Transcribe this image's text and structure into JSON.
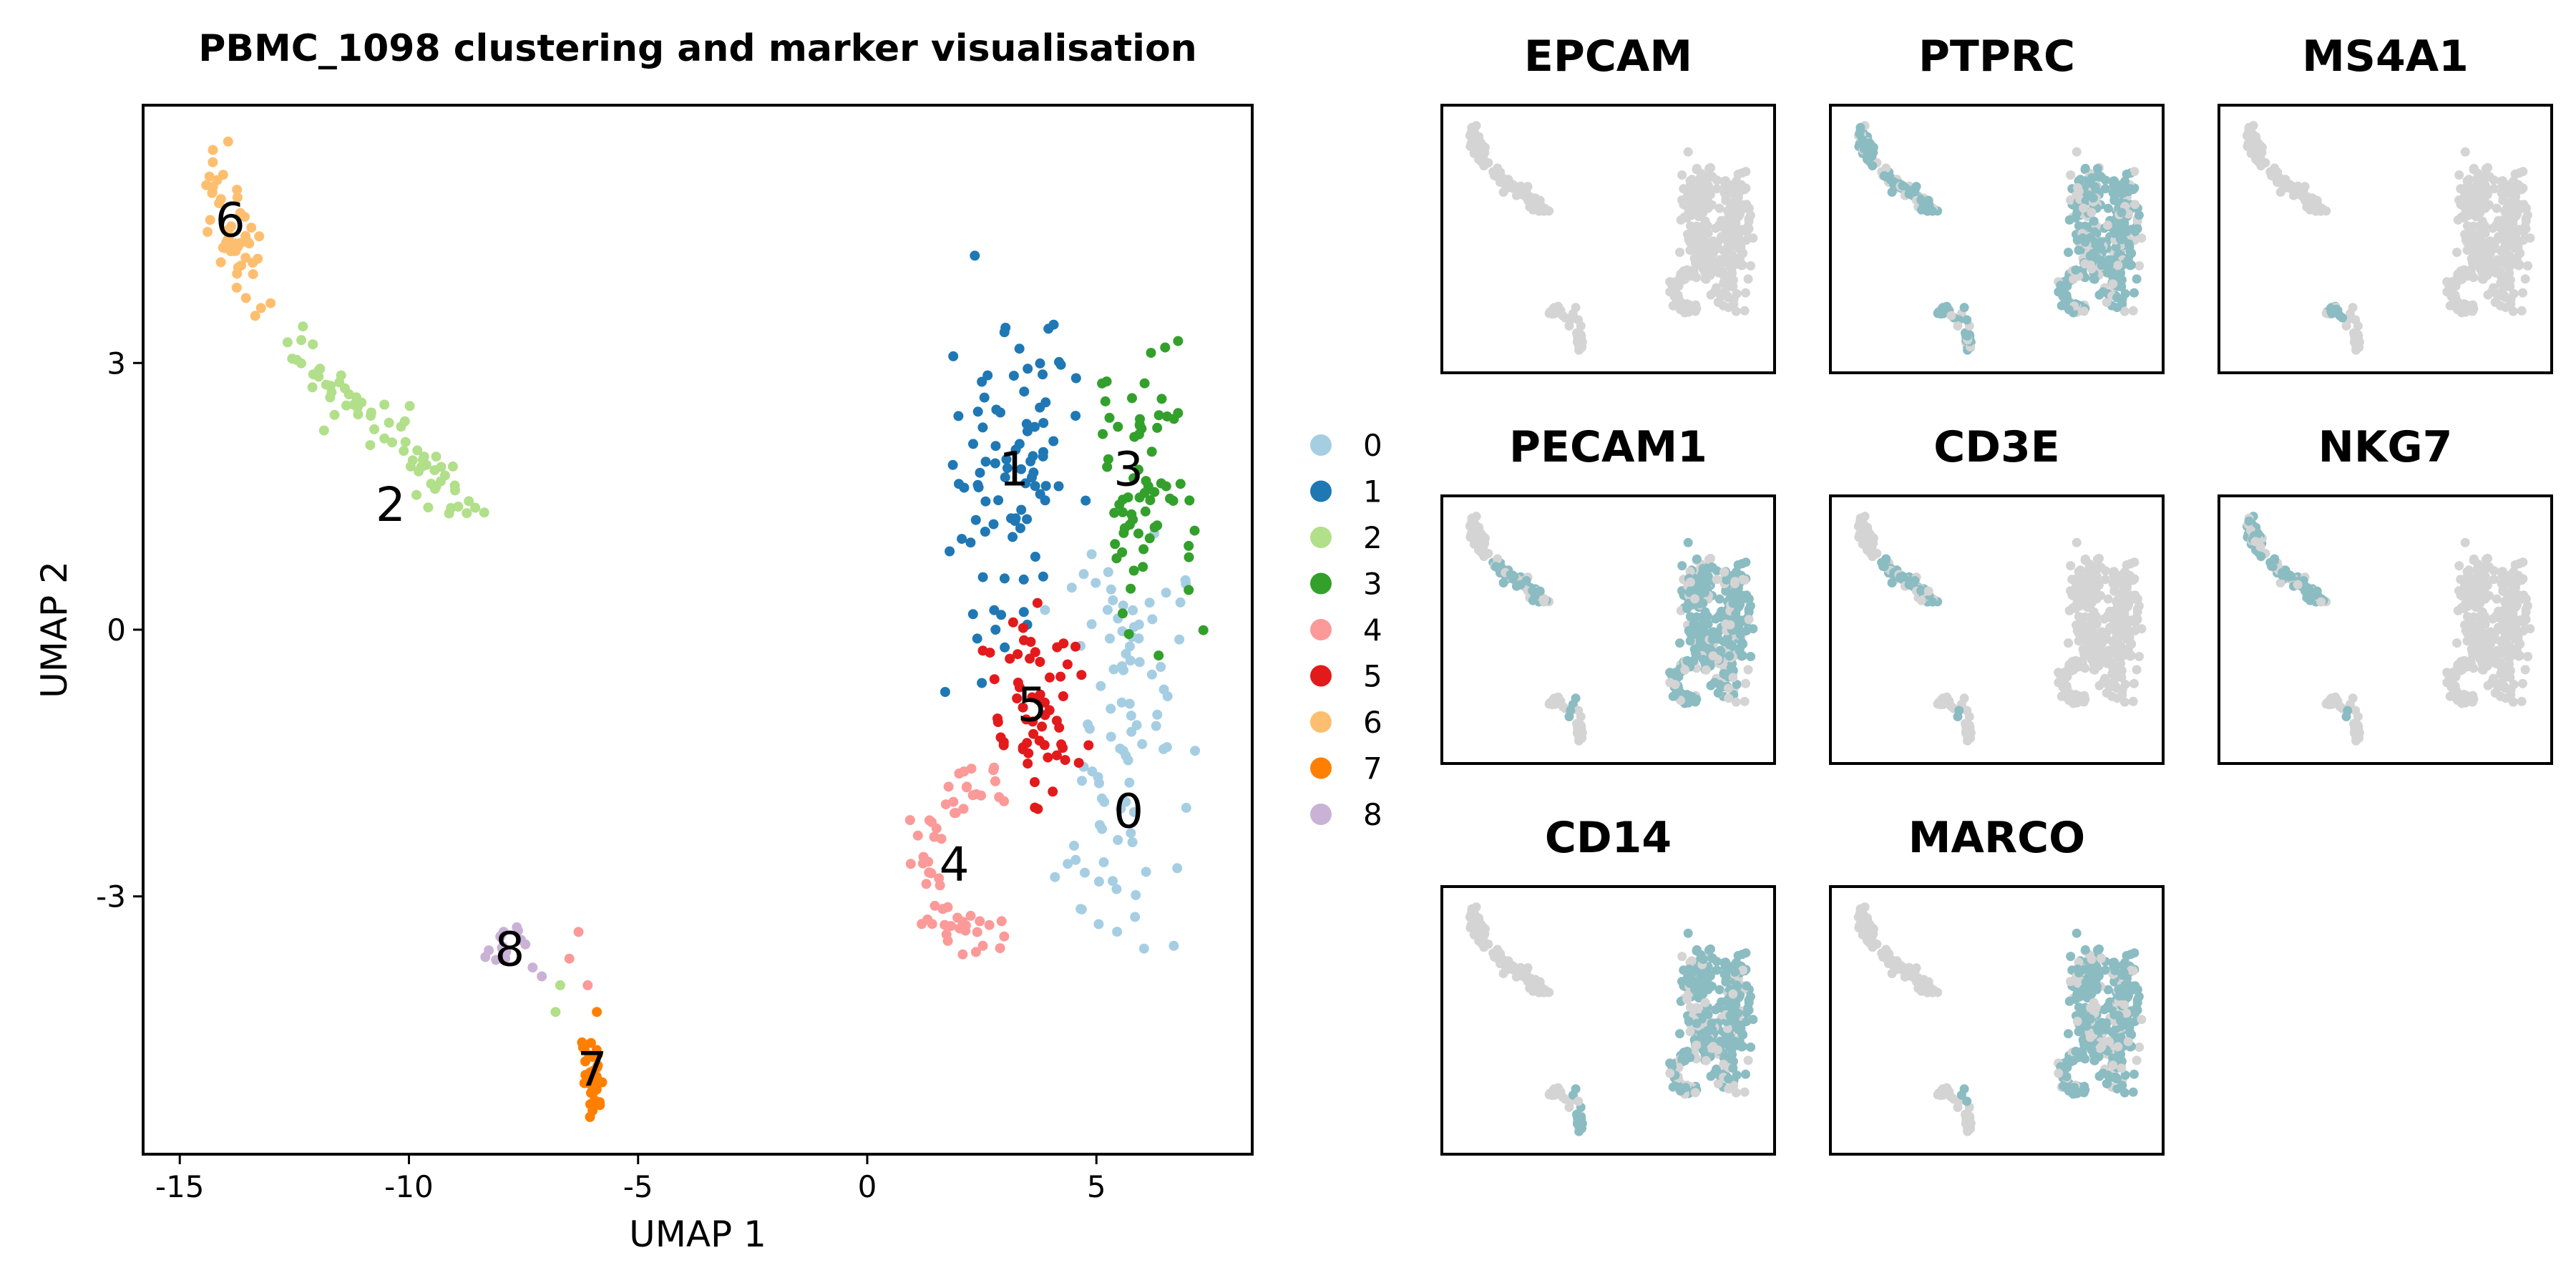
{
  "chart_data": [
    {
      "type": "scatter",
      "title": "PBMC_1098 clustering and marker visualisation",
      "xlabel": "UMAP 1",
      "ylabel": "UMAP 2",
      "xlim": [
        -15.8,
        8.4
      ],
      "ylim": [
        -5.9,
        5.9
      ],
      "x_ticks": [
        -15,
        -10,
        -5,
        0,
        5
      ],
      "x_tick_labels": [
        "-15",
        "-10",
        "-5",
        "0",
        "5"
      ],
      "y_ticks": [
        3,
        0,
        -3
      ],
      "y_tick_labels": [
        "3",
        "0",
        "-3"
      ],
      "grid": false,
      "legend_position": "right",
      "clusters": [
        {
          "name": "0",
          "color": "#a6cee3",
          "label": "0",
          "label_x": 5.7,
          "label_y": -2.05
        },
        {
          "name": "1",
          "color": "#1f78b4",
          "label": "1",
          "label_x": 3.2,
          "label_y": 1.8
        },
        {
          "name": "2",
          "color": "#b2df8a",
          "label": "2",
          "label_x": -10.4,
          "label_y": 1.4
        },
        {
          "name": "3",
          "color": "#33a02c",
          "label": "3",
          "label_x": 5.7,
          "label_y": 1.8
        },
        {
          "name": "4",
          "color": "#fb9a99",
          "label": "4",
          "label_x": 1.9,
          "label_y": -2.65
        },
        {
          "name": "5",
          "color": "#e31a1c",
          "label": "5",
          "label_x": 3.6,
          "label_y": -0.85
        },
        {
          "name": "6",
          "color": "#fdbf6f",
          "label": "6",
          "label_x": -13.9,
          "label_y": 4.6
        },
        {
          "name": "7",
          "color": "#ff7f00",
          "label": "7",
          "label_x": -6.0,
          "label_y": -4.95
        },
        {
          "name": "8",
          "color": "#cab2d6",
          "label": "8",
          "label_x": -7.8,
          "label_y": -3.6
        }
      ]
    },
    {
      "type": "scatter",
      "description": "Marker gene feature plots on the same UMAP embedding",
      "low_color": "#d4d4d4",
      "high_color": "#8bbcc2",
      "panels": [
        {
          "gene": "EPCAM",
          "expressed": []
        },
        {
          "gene": "PTPRC",
          "expressed": [
            "0",
            "1",
            "2",
            "3",
            "4",
            "5",
            "6",
            "7",
            "8"
          ]
        },
        {
          "gene": "MS4A1",
          "expressed": [
            "8"
          ]
        },
        {
          "gene": "PECAM1",
          "expressed": [
            "0",
            "1",
            "3",
            "4",
            "5",
            "2"
          ]
        },
        {
          "gene": "CD3E",
          "expressed": [
            "2"
          ]
        },
        {
          "gene": "NKG7",
          "expressed": [
            "6",
            "2"
          ]
        },
        {
          "gene": "CD14",
          "expressed": [
            "7",
            "0",
            "1",
            "3",
            "4",
            "5"
          ]
        },
        {
          "gene": "MARCO",
          "expressed": [
            "0",
            "1",
            "3",
            "4",
            "5"
          ]
        }
      ]
    }
  ]
}
